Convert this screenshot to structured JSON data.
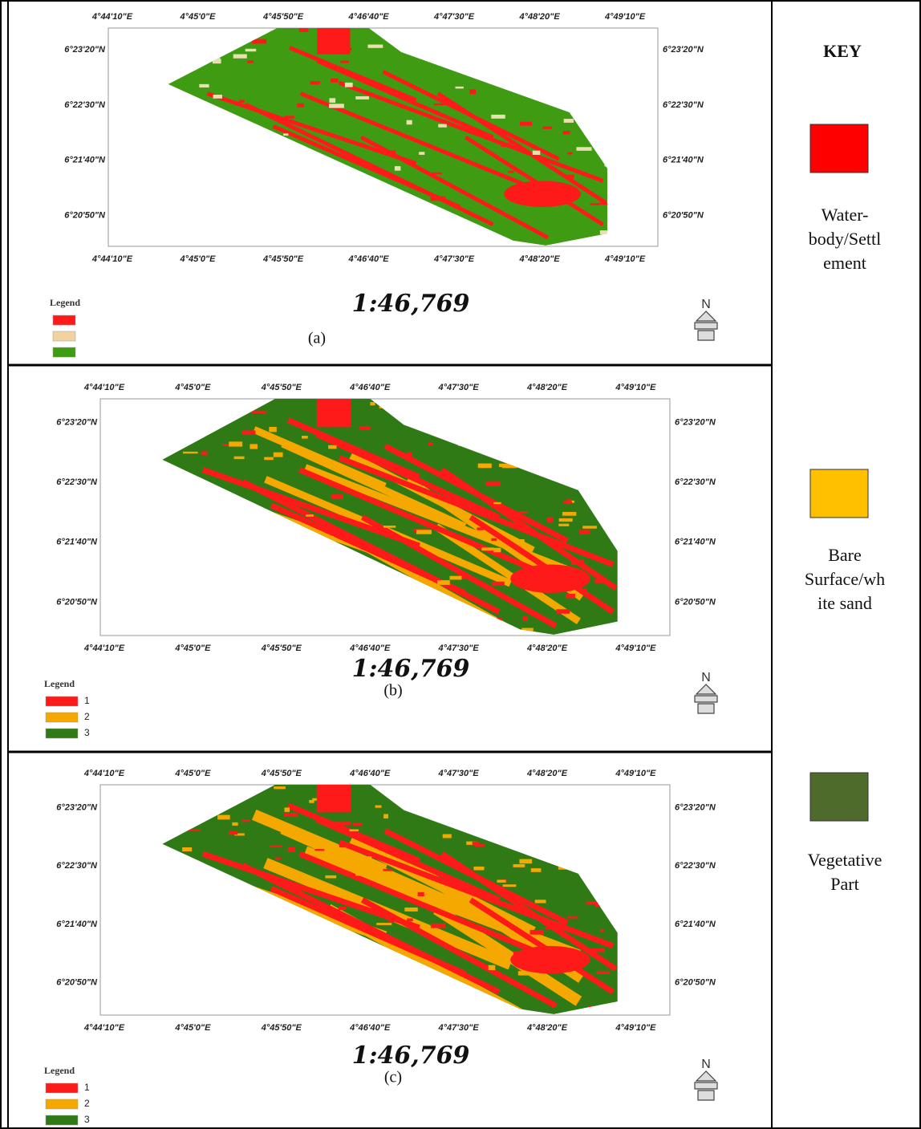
{
  "x_labels": [
    "4°44'10\"E",
    "4°45'0\"E",
    "4°45'50\"E",
    "4°46'40\"E",
    "4°47'30\"E",
    "4°48'20\"E",
    "4°49'10\"E"
  ],
  "y_labels": [
    "6°23'20\"N",
    "6°22'30\"N",
    "6°21'40\"N",
    "6°20'50\"N"
  ],
  "panels": [
    {
      "caption": "(a)",
      "scale": "1:46,769",
      "legend_title": "Legend",
      "legend_items": [],
      "north": "N"
    },
    {
      "caption": "(b)",
      "scale": "1:46,769",
      "legend_title": "Legend",
      "legend_items": [
        "1",
        "2",
        "3"
      ],
      "north": "N"
    },
    {
      "caption": "(c)",
      "scale": "1:46,769",
      "legend_title": "Legend",
      "legend_items": [
        "1",
        "2",
        "3"
      ],
      "north": "N"
    }
  ],
  "key": {
    "title": "KEY",
    "items": [
      {
        "lines": [
          "Water-",
          "body/Settl",
          "ement"
        ],
        "color": "#ff0000"
      },
      {
        "lines": [
          "Bare",
          "Surface/wh",
          "ite sand"
        ],
        "color": "#ffc000"
      },
      {
        "lines": [
          "Vegetative",
          "Part"
        ],
        "color": "#4f6b2c"
      }
    ]
  }
}
